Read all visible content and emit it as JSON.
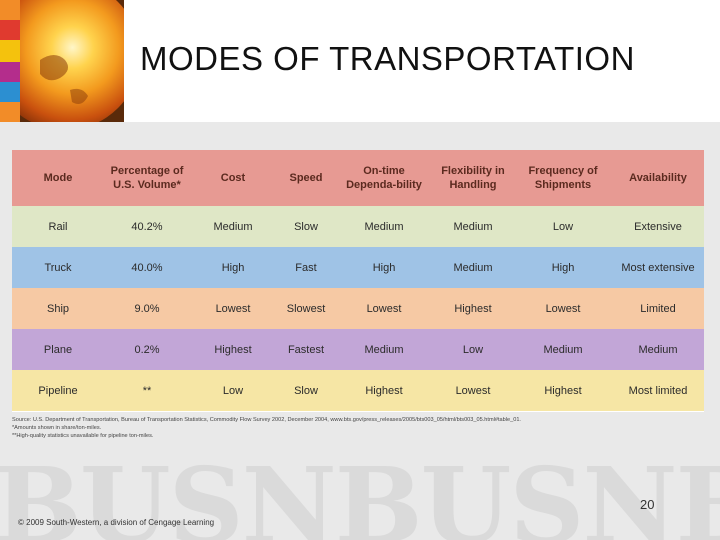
{
  "slide": {
    "title": "MODES OF TRANSPORTATION",
    "page_number": "20",
    "copyright": "© 2009 South-Western, a division of Cengage Learning",
    "watermark": "BUSNBUSNBU"
  },
  "table": {
    "headers": [
      "Mode",
      "Percentage of U.S. Volume*",
      "Cost",
      "Speed",
      "On-time Dependa-bility",
      "Flexibility in Handling",
      "Frequency of Shipments",
      "Availability"
    ],
    "rows": [
      [
        "Rail",
        "40.2%",
        "Medium",
        "Slow",
        "Medium",
        "Medium",
        "Low",
        "Extensive"
      ],
      [
        "Truck",
        "40.0%",
        "High",
        "Fast",
        "High",
        "Medium",
        "High",
        "Most extensive"
      ],
      [
        "Ship",
        "9.0%",
        "Lowest",
        "Slowest",
        "Lowest",
        "Highest",
        "Lowest",
        "Limited"
      ],
      [
        "Plane",
        "0.2%",
        "Highest",
        "Fastest",
        "Medium",
        "Low",
        "Medium",
        "Medium"
      ],
      [
        "Pipeline",
        "**",
        "Low",
        "Slow",
        "Highest",
        "Lowest",
        "Highest",
        "Most limited"
      ]
    ]
  },
  "source": {
    "line1": "Source: U.S. Department of Transportation, Bureau of Transportation Statistics, Commodity Flow Survey 2002, December 2004, www.bts.gov/press_releases/2005/bts003_05/html/bts003_05.html#table_01.",
    "line2": "*Amounts shown in share/ton-miles.",
    "line3": "**High-quality statistics unavailable for pipeline ton-miles."
  },
  "colors": {
    "header": "#e79a93",
    "rail": "#dfe7c6",
    "truck": "#9fc3e6",
    "ship": "#f6c9a4",
    "plane": "#c2a6d7",
    "pipeline": "#f6e6a5"
  },
  "icons": {
    "logo": "globe-icon"
  }
}
